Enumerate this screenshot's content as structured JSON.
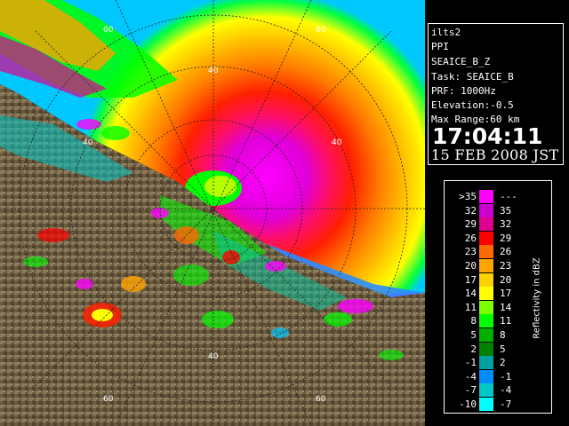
{
  "info": {
    "lines": [
      "ilts2",
      "PPI",
      "SEAICE_B_Z",
      "Task: SEAICE_B",
      "PRF: 1000Hz",
      "Elevation:-0.5",
      "Max Range:60 km"
    ],
    "time": "17:04:11",
    "date": "15 FEB 2008 JST"
  },
  "rings": {
    "labels_inner": [
      "40",
      "40",
      "40"
    ],
    "labels_outer": [
      "60",
      "60",
      "60",
      "60"
    ],
    "label_40_left": "40",
    "label_40_right": "40",
    "label_40_bottom": "40",
    "label_40_top": "40",
    "label_60_tl": "60",
    "label_60_tr": "60",
    "label_60_bl": "60",
    "label_60_br": "60"
  },
  "legend": {
    "unit": "Reflectivity in dBZ",
    "rows": [
      {
        "lo": ">35",
        "hi": "---",
        "color": "#ff00ff"
      },
      {
        "lo": "32",
        "hi": "35",
        "color": "#cc00cc"
      },
      {
        "lo": "29",
        "hi": "32",
        "color": "#e00090"
      },
      {
        "lo": "26",
        "hi": "29",
        "color": "#ff0000"
      },
      {
        "lo": "23",
        "hi": "26",
        "color": "#ff6a00"
      },
      {
        "lo": "20",
        "hi": "23",
        "color": "#ffa500"
      },
      {
        "lo": "17",
        "hi": "20",
        "color": "#ffd000"
      },
      {
        "lo": "14",
        "hi": "17",
        "color": "#ffff00"
      },
      {
        "lo": "11",
        "hi": "14",
        "color": "#7cff00"
      },
      {
        "lo": "8",
        "hi": "11",
        "color": "#00ff00"
      },
      {
        "lo": "5",
        "hi": "8",
        "color": "#00b000"
      },
      {
        "lo": "2",
        "hi": "5",
        "color": "#008000"
      },
      {
        "lo": "-1",
        "hi": "2",
        "color": "#00a0a0"
      },
      {
        "lo": "-4",
        "hi": "-1",
        "color": "#008cff"
      },
      {
        "lo": "-7",
        "hi": "-4",
        "color": "#00c8c8"
      },
      {
        "lo": "-10",
        "hi": "-7",
        "color": "#00ffff"
      }
    ]
  }
}
